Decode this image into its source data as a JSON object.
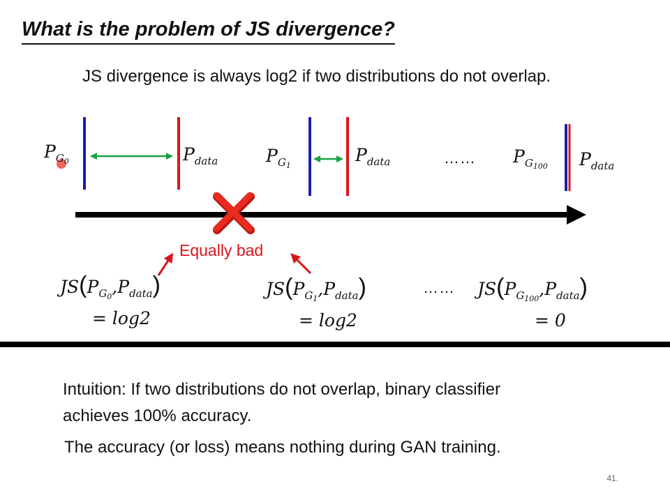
{
  "slide": {
    "title": "What is the problem of JS divergence?",
    "subtitle": "JS divergence is always log2 if two distributions do not overlap.",
    "page_number": "41."
  },
  "distributions": {
    "p_letter": "P",
    "g_letter": "G",
    "data_sub": "data",
    "g0_index": "0",
    "g1_index": "1",
    "g100_index": "100",
    "ellipsis": "……"
  },
  "annotation": {
    "label": "Equally bad"
  },
  "equations": {
    "js": "JS",
    "left_paren": "(",
    "right_paren": ")",
    "comma": ",",
    "eq0_result": "= log2",
    "eq1_result": "= log2",
    "eq100_result": "= 0",
    "ellipsis": "……"
  },
  "intuition": {
    "line1": "Intuition: If two distributions do not overlap, binary classifier",
    "line2": "achieves 100% accuracy.",
    "line3": "The accuracy (or loss) means nothing during GAN training."
  },
  "colors": {
    "generator_line": "#1b1fa8",
    "data_line": "#d9151b",
    "distance_arrow": "#19a340",
    "axis": "#000000",
    "cross": "#e0261c",
    "annotation": "#d9151b"
  }
}
